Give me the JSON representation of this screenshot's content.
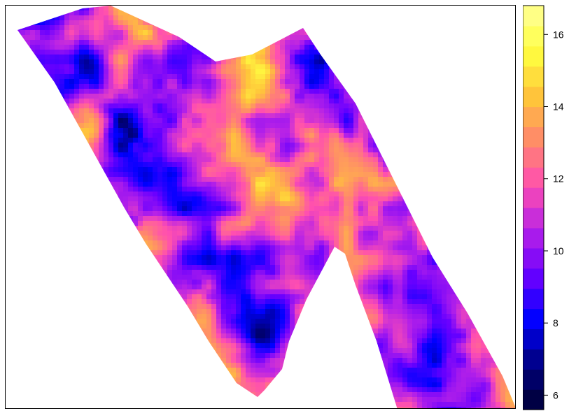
{
  "chart_data": {
    "type": "heatmap",
    "title": "",
    "xlabel": "",
    "ylabel": "",
    "legend": {
      "placement": "right",
      "min": 5.6,
      "max": 16.8,
      "ticks": [
        "6",
        "8",
        "10",
        "12",
        "14",
        "16"
      ],
      "tick_values": [
        6,
        8,
        10,
        12,
        14,
        16
      ],
      "color_stops": [
        "#000033",
        "#000080",
        "#0000ff",
        "#6a00ff",
        "#b521e8",
        "#ff4fb0",
        "#ff8a6a",
        "#ffc53a",
        "#ffff40",
        "#ffff99"
      ]
    },
    "value_range": [
      5.6,
      16.8
    ]
  }
}
